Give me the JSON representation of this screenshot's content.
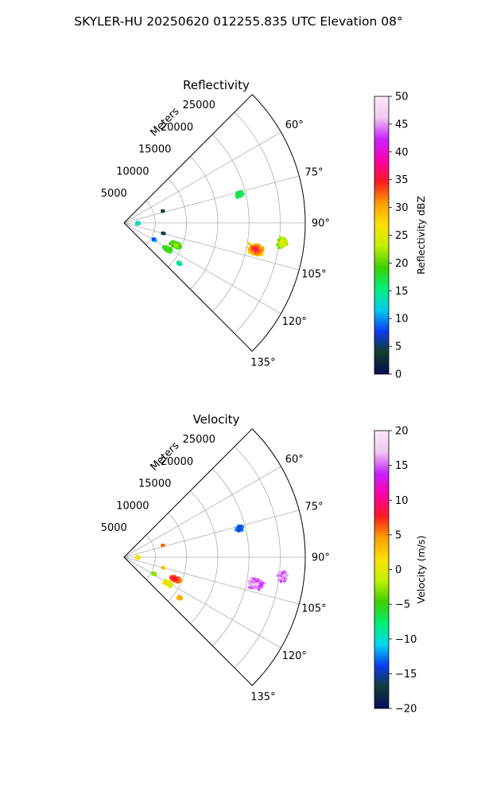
{
  "figure": {
    "suptitle": "SKYLER-HU  20250620  012255.835 UTC Elevation 08°"
  },
  "chart_data": [
    {
      "type": "heatmap",
      "projection": "polar-sector",
      "title": "Reflectivity",
      "radial_label": "Meters",
      "radial_ticks": [
        "5000",
        "10000",
        "15000",
        "20000",
        "25000"
      ],
      "radial_tick_values": [
        5000,
        10000,
        15000,
        20000,
        25000
      ],
      "rlim": [
        0,
        29000
      ],
      "azimuth_ticks": [
        "60°",
        "75°",
        "90°",
        "105°",
        "120°",
        "135°"
      ],
      "azimuth_tick_values": [
        60,
        75,
        90,
        105,
        120,
        135
      ],
      "thetalim": [
        45,
        135
      ],
      "grid": true,
      "colorbar": {
        "label": "Reflectivity dBZ",
        "range": [
          0,
          50
        ],
        "ticks": [
          "0",
          "5",
          "10",
          "15",
          "20",
          "25",
          "30",
          "35",
          "40",
          "45",
          "50"
        ],
        "stops": [
          "#0a0a5a",
          "#103c28",
          "#0c3cf0",
          "#00ccf0",
          "#00f07a",
          "#40d000",
          "#c4f000",
          "#ffe000",
          "#ff9c00",
          "#ff1a20",
          "#ff00a8",
          "#c822ff",
          "#f0c8f0",
          "#fce8fa"
        ]
      },
      "echoes": [
        {
          "az": 101.5,
          "r": 21500,
          "dr": 1400,
          "daz": 2.6,
          "value": 28,
          "core": 37
        },
        {
          "az": 97.0,
          "r": 25500,
          "dr": 900,
          "daz": 2.3,
          "value": 20,
          "core": 27
        },
        {
          "az": 76.0,
          "r": 19000,
          "dr": 700,
          "daz": 1.8,
          "value": 15,
          "core": 18
        },
        {
          "az": 113.0,
          "r": 9000,
          "dr": 1100,
          "daz": 3.0,
          "value": 18,
          "core": 23
        },
        {
          "az": 121.0,
          "r": 8200,
          "dr": 900,
          "daz": 2.8,
          "value": 17,
          "core": 21
        },
        {
          "az": 126.0,
          "r": 11000,
          "dr": 400,
          "daz": 1.6,
          "value": 14,
          "core": 15
        },
        {
          "az": 119.0,
          "r": 5500,
          "dr": 350,
          "daz": 2.0,
          "value": 10,
          "core": 8
        },
        {
          "az": 105.0,
          "r": 6500,
          "dr": 250,
          "daz": 1.0,
          "value": 6,
          "core": 4
        },
        {
          "az": 91.5,
          "r": 2200,
          "dr": 300,
          "daz": 6.0,
          "value": 12,
          "core": 14
        },
        {
          "az": 73.0,
          "r": 6500,
          "dr": 200,
          "daz": 1.0,
          "value": 6,
          "core": 3
        }
      ]
    },
    {
      "type": "heatmap",
      "projection": "polar-sector",
      "title": "Velocity",
      "radial_label": "Meters",
      "radial_ticks": [
        "5000",
        "10000",
        "15000",
        "20000",
        "25000"
      ],
      "radial_tick_values": [
        5000,
        10000,
        15000,
        20000,
        25000
      ],
      "rlim": [
        0,
        29000
      ],
      "azimuth_ticks": [
        "60°",
        "75°",
        "90°",
        "105°",
        "120°",
        "135°"
      ],
      "azimuth_tick_values": [
        60,
        75,
        90,
        105,
        120,
        135
      ],
      "thetalim": [
        45,
        135
      ],
      "grid": true,
      "colorbar": {
        "label": "Velocity (m/s)",
        "range": [
          -20,
          20
        ],
        "ticks": [
          "−20",
          "−15",
          "−10",
          "−5",
          "0",
          "5",
          "10",
          "15",
          "20"
        ],
        "stops": [
          "#0a0a5a",
          "#0e3c3a",
          "#0c3cf0",
          "#00d8f0",
          "#00f070",
          "#40d000",
          "#c4f000",
          "#ffe000",
          "#ff9c00",
          "#ff1a20",
          "#ff00a8",
          "#c822ff",
          "#f0c8f0",
          "#fce8fa"
        ]
      },
      "echoes": [
        {
          "az": 101.5,
          "r": 21500,
          "dr": 1400,
          "daz": 2.6,
          "value": 15,
          "core": 16
        },
        {
          "az": 97.0,
          "r": 25500,
          "dr": 900,
          "daz": 2.3,
          "value": 15,
          "core": 17
        },
        {
          "az": 76.0,
          "r": 19000,
          "dr": 700,
          "daz": 1.8,
          "value": -12,
          "core": -14
        },
        {
          "az": 113.0,
          "r": 9000,
          "dr": 1100,
          "daz": 3.0,
          "value": 5,
          "core": 9
        },
        {
          "az": 121.0,
          "r": 8200,
          "dr": 900,
          "daz": 2.8,
          "value": 0,
          "core": 1
        },
        {
          "az": 126.0,
          "r": 11000,
          "dr": 400,
          "daz": 1.6,
          "value": 4,
          "core": 3
        },
        {
          "az": 119.0,
          "r": 5500,
          "dr": 350,
          "daz": 2.0,
          "value": -3,
          "core": -3
        },
        {
          "az": 105.0,
          "r": 6500,
          "dr": 250,
          "daz": 1.0,
          "value": 2,
          "core": 3
        },
        {
          "az": 91.5,
          "r": 2200,
          "dr": 300,
          "daz": 6.0,
          "value": 0,
          "core": 1
        },
        {
          "az": 73.0,
          "r": 6500,
          "dr": 200,
          "daz": 1.0,
          "value": 4,
          "core": 6
        }
      ]
    }
  ]
}
